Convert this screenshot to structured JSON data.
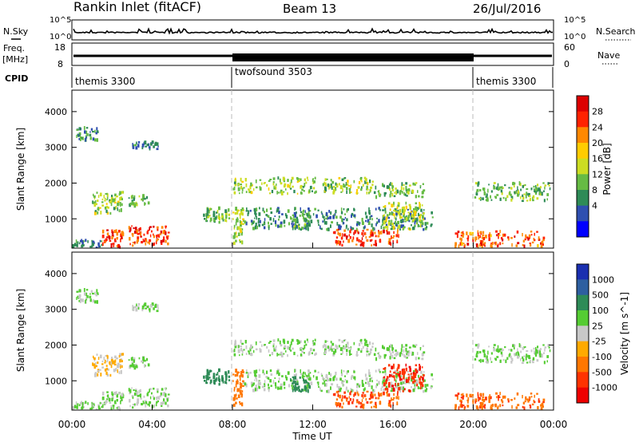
{
  "header": {
    "station": "Rankin Inlet (fitACF)",
    "beam": "Beam 13",
    "date": "26/Jul/2016"
  },
  "noise_panel": {
    "left_label": "N.Sky",
    "right_label": "N.Search",
    "ticks_left": [
      "10^5",
      "10^0"
    ],
    "ticks_right": [
      "10^5",
      "10^0"
    ]
  },
  "freq_panel": {
    "left_label": "Freq.",
    "left_unit": "[MHz]",
    "right_label": "Nave",
    "ticks_left": [
      "18",
      "8"
    ],
    "ticks_right": [
      "60",
      "0"
    ]
  },
  "cpid_panel": {
    "label": "CPID",
    "modes": [
      {
        "name": "themis 3300",
        "start": "00:00",
        "end": "08:00"
      },
      {
        "name": "twofsound 3503",
        "start": "08:00",
        "end": "20:00"
      },
      {
        "name": "themis 3300",
        "start": "20:00",
        "end": "24:00"
      }
    ]
  },
  "power_panel": {
    "ylabel": "Slant Range [km]",
    "yticks": [
      "4000",
      "3000",
      "2000",
      "1000"
    ],
    "colorbar_label": "Power [dB]",
    "colorbar_ticks": [
      "28",
      "24",
      "20",
      "16",
      "12",
      "8",
      "4"
    ],
    "colors": [
      "#0000ff",
      "#2f4fb0",
      "#2e8b57",
      "#66bb44",
      "#ccdd22",
      "#ffcc00",
      "#ff8800",
      "#ff2200",
      "#dd0000"
    ]
  },
  "velocity_panel": {
    "ylabel": "Slant Range [km]",
    "yticks": [
      "4000",
      "3000",
      "2000",
      "1000"
    ],
    "colorbar_label": "Velocity [m s^-1]",
    "colorbar_ticks": [
      "1000",
      "500",
      "100",
      "25",
      "-25",
      "-100",
      "-500",
      "-1000"
    ],
    "colors": [
      "#1a2fb0",
      "#2e5fa0",
      "#2e8b57",
      "#55cc33",
      "#c8c8c8",
      "#ffaa00",
      "#ff7700",
      "#ff3300",
      "#ee0000"
    ]
  },
  "x_axis": {
    "ticks": [
      "00:00",
      "04:00",
      "08:00",
      "12:00",
      "16:00",
      "20:00",
      "00:00"
    ],
    "label": "Time UT"
  },
  "chart_data": {
    "type": "heatmap",
    "x_range_hours": [
      0,
      24
    ],
    "y_range_km": [
      180,
      4600
    ],
    "scatter_regions": [
      {
        "t0": 0.2,
        "t1": 1.3,
        "r0": 3200,
        "r1": 3550,
        "power_db": 8,
        "velocity": 25
      },
      {
        "t0": 3.0,
        "t1": 4.4,
        "r0": 2950,
        "r1": 3150,
        "power_db": 6,
        "velocity": 25
      },
      {
        "t0": 1.0,
        "t1": 2.5,
        "r0": 1150,
        "r1": 1750,
        "power_db": 14,
        "velocity": -25
      },
      {
        "t0": 2.8,
        "t1": 3.8,
        "r0": 1350,
        "r1": 1650,
        "power_db": 12,
        "velocity": 25
      },
      {
        "t0": 1.5,
        "t1": 2.5,
        "r0": 200,
        "r1": 700,
        "power_db": 28,
        "velocity": 25
      },
      {
        "t0": 2.8,
        "t1": 4.8,
        "r0": 250,
        "r1": 800,
        "power_db": 28,
        "velocity": 25
      },
      {
        "t0": 8.0,
        "t1": 15.0,
        "r0": 1700,
        "r1": 2150,
        "power_db": 14,
        "velocity": 25
      },
      {
        "t0": 15.0,
        "t1": 17.5,
        "r0": 1600,
        "r1": 2000,
        "power_db": 12,
        "velocity": 25
      },
      {
        "t0": 20.0,
        "t1": 23.8,
        "r0": 1500,
        "r1": 2000,
        "power_db": 12,
        "velocity": 25
      },
      {
        "t0": 8.5,
        "t1": 18.0,
        "r0": 700,
        "r1": 1300,
        "power_db": 8,
        "velocity": 25
      },
      {
        "t0": 13.0,
        "t1": 16.3,
        "r0": 250,
        "r1": 700,
        "power_db": 28,
        "velocity": -300
      },
      {
        "t0": 15.5,
        "t1": 17.5,
        "r0": 700,
        "r1": 1450,
        "power_db": 16,
        "velocity": -600
      },
      {
        "t0": 19.0,
        "t1": 23.5,
        "r0": 220,
        "r1": 650,
        "power_db": 26,
        "velocity": -250
      },
      {
        "t0": 6.5,
        "t1": 7.8,
        "r0": 900,
        "r1": 1300,
        "power_db": 12,
        "velocity": 150
      },
      {
        "t0": 8.0,
        "t1": 8.5,
        "r0": 300,
        "r1": 1300,
        "power_db": 16,
        "velocity": -200
      },
      {
        "t0": 10.8,
        "t1": 11.8,
        "r0": 700,
        "r1": 1100,
        "power_db": 10,
        "velocity": 150
      },
      {
        "t0": 0.0,
        "t1": 1.5,
        "r0": 200,
        "r1": 400,
        "power_db": 6,
        "velocity": 25
      }
    ]
  }
}
